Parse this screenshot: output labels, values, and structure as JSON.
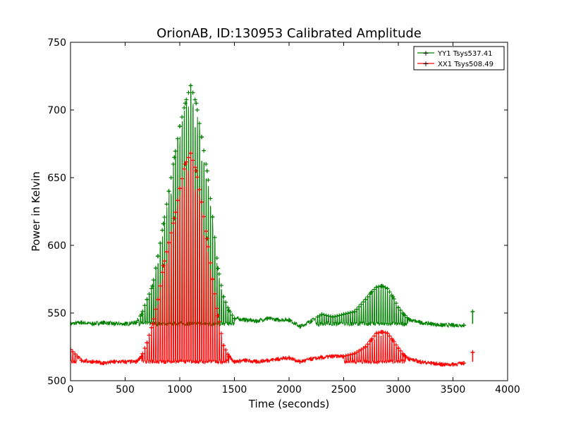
{
  "chart_data": {
    "type": "line",
    "title": "OrionAB, ID:130953 Calibrated Amplitude",
    "xlabel": "Time (seconds)",
    "ylabel": "Power in Kelvin",
    "xlim": [
      0,
      4000
    ],
    "ylim": [
      500,
      750
    ],
    "x_ticks": [
      "0",
      "500",
      "1000",
      "1500",
      "2000",
      "2500",
      "3000",
      "3500",
      "4000"
    ],
    "y_ticks": [
      "500",
      "550",
      "600",
      "650",
      "700",
      "750"
    ],
    "grid": false,
    "legend_position": "top-right",
    "series": [
      {
        "name": "YY1 Tsys537.41",
        "color": "#008000",
        "baseline": 542,
        "x": [
          0,
          100,
          200,
          300,
          400,
          500,
          600,
          650,
          700,
          750,
          800,
          850,
          900,
          950,
          1000,
          1050,
          1100,
          1150,
          1200,
          1250,
          1300,
          1350,
          1400,
          1450,
          1500,
          1600,
          1700,
          1800,
          1900,
          2000,
          2100,
          2200,
          2300,
          2400,
          2500,
          2600,
          2700,
          2750,
          2800,
          2850,
          2900,
          2950,
          3000,
          3050,
          3100,
          3200,
          3300,
          3400,
          3500,
          3600,
          3680
        ],
        "y": [
          542,
          543,
          542,
          543,
          542,
          542,
          543,
          549,
          560,
          570,
          592,
          616,
          640,
          665,
          688,
          705,
          718,
          705,
          680,
          655,
          621,
          583,
          562,
          552,
          546,
          545,
          544,
          546,
          545,
          545,
          540,
          544,
          549,
          547,
          549,
          551,
          560,
          565,
          569,
          570,
          568,
          562,
          554,
          549,
          545,
          543,
          542,
          541,
          541,
          541,
          551
        ]
      },
      {
        "name": "XX1 Tsys508.49",
        "color": "#ff0000",
        "baseline": 514,
        "x": [
          0,
          100,
          200,
          300,
          400,
          500,
          600,
          650,
          700,
          750,
          800,
          850,
          900,
          950,
          1000,
          1050,
          1100,
          1150,
          1200,
          1250,
          1300,
          1350,
          1400,
          1450,
          1500,
          1600,
          1700,
          1800,
          1900,
          2000,
          2100,
          2200,
          2300,
          2400,
          2500,
          2600,
          2700,
          2750,
          2800,
          2850,
          2900,
          2950,
          3000,
          3050,
          3100,
          3200,
          3300,
          3400,
          3500,
          3600,
          3680
        ],
        "y": [
          523,
          515,
          514,
          513,
          514,
          514,
          514,
          518,
          528,
          542,
          560,
          585,
          602,
          620,
          642,
          660,
          668,
          655,
          632,
          605,
          575,
          548,
          526,
          518,
          514,
          515,
          514,
          515,
          516,
          517,
          514,
          516,
          517,
          518,
          518,
          520,
          525,
          530,
          535,
          536,
          535,
          530,
          524,
          519,
          516,
          514,
          513,
          512,
          512,
          513,
          521
        ]
      }
    ]
  }
}
